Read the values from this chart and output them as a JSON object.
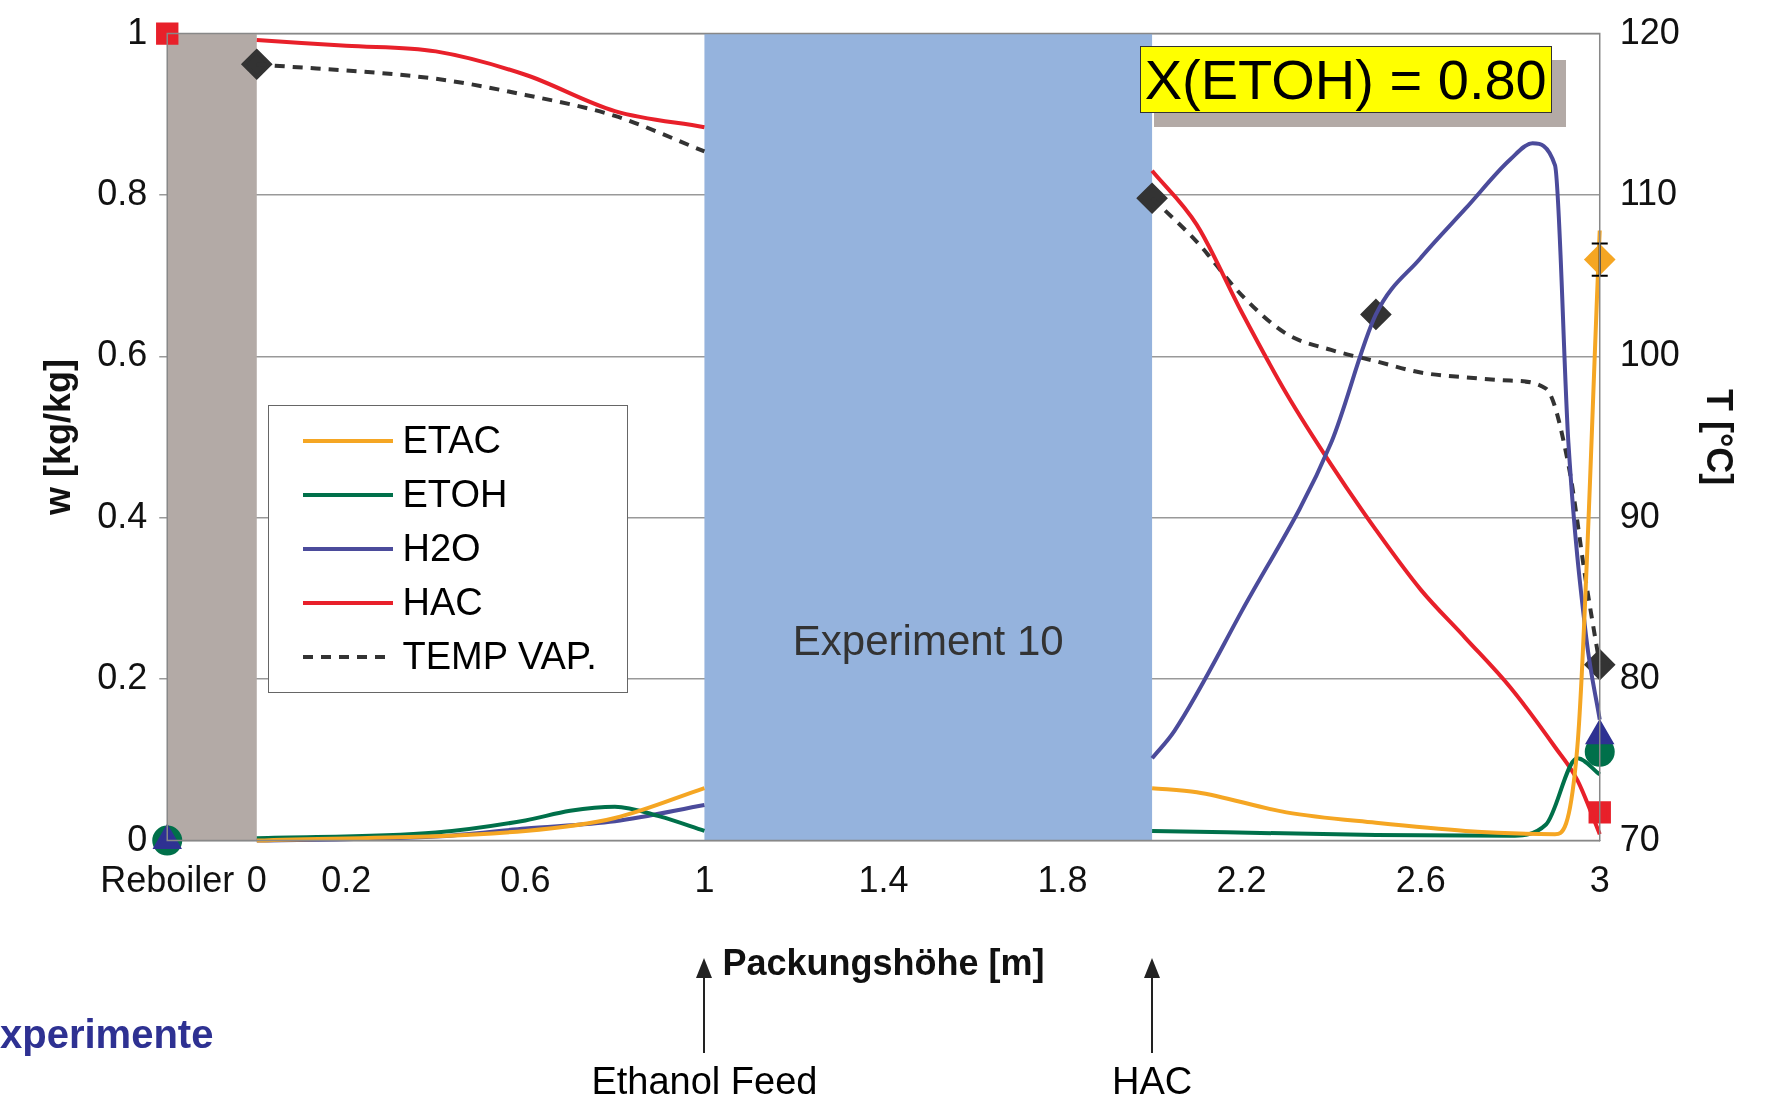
{
  "chart_data": {
    "type": "line",
    "xlabel": "Packungshöhe [m]",
    "ylabel": "w [kg/kg]",
    "y2label": "T [°C]",
    "xlim": [
      -0.2,
      3
    ],
    "xticks": [
      {
        "value": -0.2,
        "label": "Reboiler"
      },
      0,
      0.2,
      0.6,
      1,
      1.4,
      1.8,
      2.2,
      2.6,
      3
    ],
    "ylim": [
      0,
      1
    ],
    "yticks": [
      0,
      0.2,
      0.4,
      0.6,
      0.8,
      1
    ],
    "y2lim": [
      70,
      120
    ],
    "y2ticks": [
      70,
      80,
      90,
      100,
      110,
      120
    ],
    "grid": "y",
    "legend": "left",
    "bands": [
      {
        "axis": "x",
        "from": -0.2,
        "to": 0,
        "color": "#b3aaa6"
      },
      {
        "axis": "x",
        "from": 1,
        "to": 2,
        "color": "#95b3dd",
        "label": "Experiment 10"
      }
    ],
    "annotations": [
      "X(ETOH) = 0.80",
      "Ethanol Feed",
      "HAC",
      "xperimente"
    ],
    "series": [
      {
        "name": "ETAC",
        "color": "#f5a623",
        "x": [
          0,
          0.6,
          0.8,
          1,
          1.5,
          2,
          2.1,
          2.3,
          2.5,
          2.7,
          2.9,
          2.95,
          3
        ],
        "values": [
          0,
          0.012,
          0.028,
          0.065,
          null,
          0.065,
          0.06,
          0.035,
          0.022,
          0.012,
          0.008,
          0.116,
          0.756
        ]
      },
      {
        "name": "ETOH",
        "color": "#00704a",
        "x": [
          0,
          0.4,
          0.6,
          0.7,
          0.8,
          0.9,
          1,
          1.5,
          2,
          2.5,
          2.8,
          2.88,
          2.95,
          3
        ],
        "values": [
          0.003,
          0.01,
          0.025,
          0.037,
          0.042,
          0.03,
          0.012,
          null,
          0.012,
          0.007,
          0.006,
          0.02,
          0.102,
          0.082
        ]
      },
      {
        "name": "H2O",
        "color": "#4b4b9b",
        "x": [
          0,
          0.4,
          0.6,
          0.8,
          1,
          1.5,
          2,
          2.05,
          2.2,
          2.4,
          2.5,
          2.6,
          2.7,
          2.8,
          2.85,
          2.9,
          2.93,
          2.97,
          3
        ],
        "values": [
          0,
          0.005,
          0.015,
          0.024,
          0.044,
          null,
          0.102,
          0.136,
          0.284,
          0.493,
          0.652,
          0.722,
          0.783,
          0.844,
          0.864,
          0.837,
          0.493,
          0.251,
          0.15
        ]
      },
      {
        "name": "HAC",
        "color": "#e8202a",
        "x": [
          0,
          0.2,
          0.4,
          0.6,
          0.8,
          1,
          1.5,
          2,
          2.1,
          2.2,
          2.3,
          2.4,
          2.5,
          2.6,
          2.7,
          2.8,
          2.9,
          2.95,
          3
        ],
        "values": [
          0.992,
          0.985,
          0.978,
          0.949,
          0.904,
          0.884,
          null,
          0.83,
          0.763,
          0.655,
          0.554,
          0.466,
          0.385,
          0.311,
          0.251,
          0.19,
          0.116,
          0.075,
          0.008
        ]
      },
      {
        "name": "TEMP VAP.",
        "color": "#333333",
        "axis": "y2",
        "line_style": "dashed",
        "x": [
          0,
          0.4,
          0.6,
          0.8,
          1,
          1.5,
          2,
          2.1,
          2.2,
          2.3,
          2.4,
          2.5,
          2.6,
          2.7,
          2.8,
          2.88,
          2.93,
          2.97,
          3
        ],
        "values": [
          118.1,
          117.2,
          116.2,
          114.9,
          112.7,
          null,
          109.8,
          107.1,
          103.8,
          101.4,
          100.4,
          99.7,
          99,
          98.7,
          98.5,
          98,
          93.3,
          85.9,
          80.9
        ]
      },
      {
        "type": "scatter",
        "color": "#f5a623",
        "marker": "diamond",
        "x": [
          3
        ],
        "values": [
          0.72
        ],
        "errors": [
          0.02
        ]
      },
      {
        "type": "scatter",
        "color": "#2e3192",
        "marker": "triangle",
        "x": [
          -0.2,
          3
        ],
        "values": [
          0,
          0.13
        ]
      },
      {
        "type": "scatter",
        "color": "#00704a",
        "marker": "circle",
        "x": [
          -0.2,
          3
        ],
        "values": [
          0,
          0.11
        ]
      },
      {
        "type": "scatter",
        "color": "#e8202a",
        "marker": "square",
        "x": [
          -0.2,
          3
        ],
        "values": [
          1,
          0.035
        ]
      },
      {
        "type": "scatter",
        "color": "#333333",
        "marker": "diamond",
        "axis": "y2",
        "x": [
          0,
          2,
          2.5,
          3
        ],
        "values": [
          118.1,
          109.8,
          102.6,
          80.9
        ]
      }
    ]
  }
}
